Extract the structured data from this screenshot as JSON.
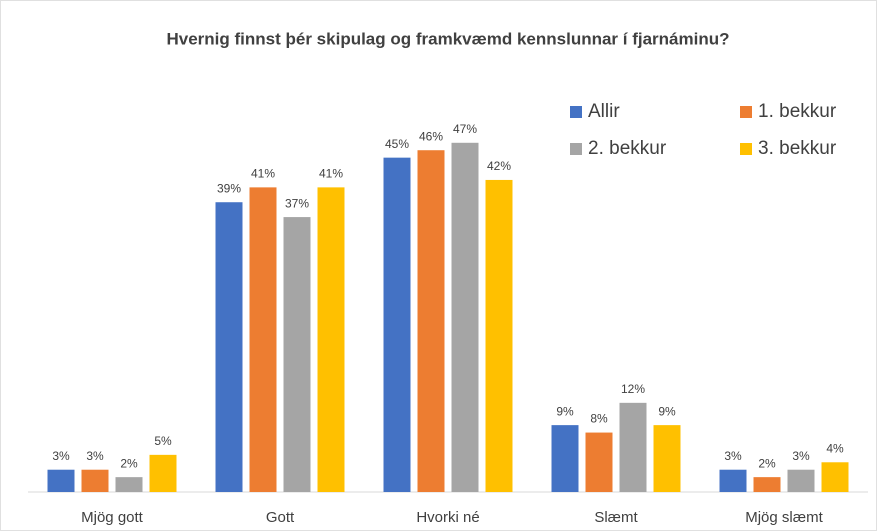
{
  "chart_data": {
    "type": "bar",
    "title": "Hvernig finnst þér skipulag og framkvæmd kennslunnar í fjarnáminu?",
    "categories": [
      "Mjög gott",
      "Gott",
      "Hvorki né",
      "Slæmt",
      "Mjög slæmt"
    ],
    "series": [
      {
        "name": "Allir",
        "color": "#4472c4",
        "values": [
          3,
          39,
          45,
          9,
          3
        ],
        "value_labels": [
          "3%",
          "39%",
          "45%",
          "9%",
          "3%"
        ]
      },
      {
        "name": "1. bekkur",
        "color": "#ed7d31",
        "values": [
          3,
          41,
          46,
          8,
          2
        ],
        "value_labels": [
          "3%",
          "41%",
          "46%",
          "8%",
          "2%"
        ]
      },
      {
        "name": "2. bekkur",
        "color": "#a5a5a5",
        "values": [
          2,
          37,
          47,
          12,
          3
        ],
        "value_labels": [
          "2%",
          "37%",
          "47%",
          "12%",
          "3%"
        ]
      },
      {
        "name": "3. bekkur",
        "color": "#ffc000",
        "values": [
          5,
          41,
          42,
          9,
          4
        ],
        "value_labels": [
          "5%",
          "41%",
          "42%",
          "9%",
          "4%"
        ]
      }
    ],
    "ylim": [
      0,
      50
    ],
    "legend": "top-right"
  }
}
